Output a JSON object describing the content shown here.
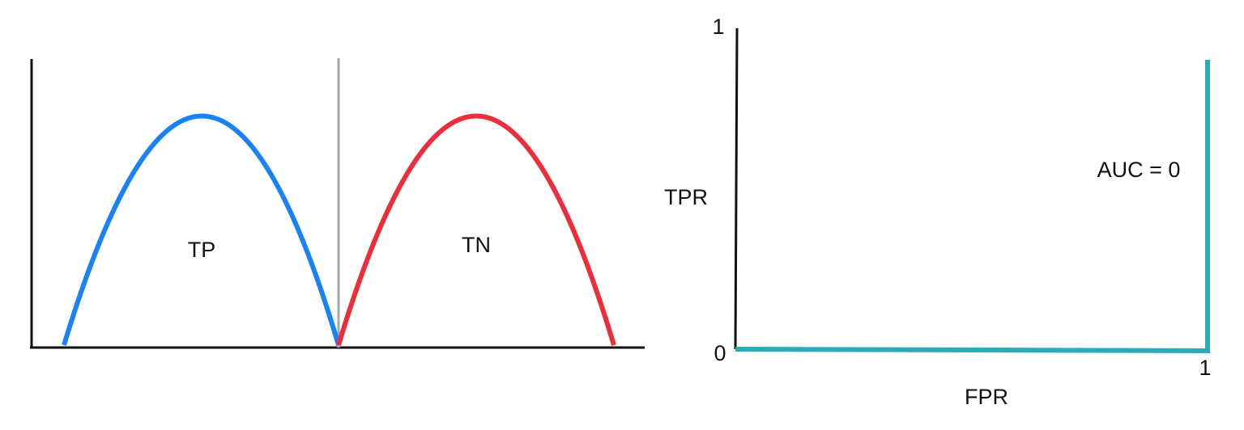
{
  "left_panel": {
    "region_left_label": "TP",
    "region_right_label": "TN",
    "curve_left_color": "#1a82f7",
    "curve_right_color": "#ee2c3a",
    "threshold_color": "#a8a8a8",
    "axis_color": "#111111"
  },
  "right_panel": {
    "x_axis_label": "FPR",
    "y_axis_label": "TPR",
    "origin_label": "0",
    "x_end_label": "1",
    "y_end_label": "1",
    "auc_label": "AUC = 0",
    "roc_color": "#2aabb8",
    "axis_color": "#111111",
    "roc_points": [
      [
        0,
        0
      ],
      [
        1,
        0
      ],
      [
        1,
        0.9
      ]
    ]
  }
}
